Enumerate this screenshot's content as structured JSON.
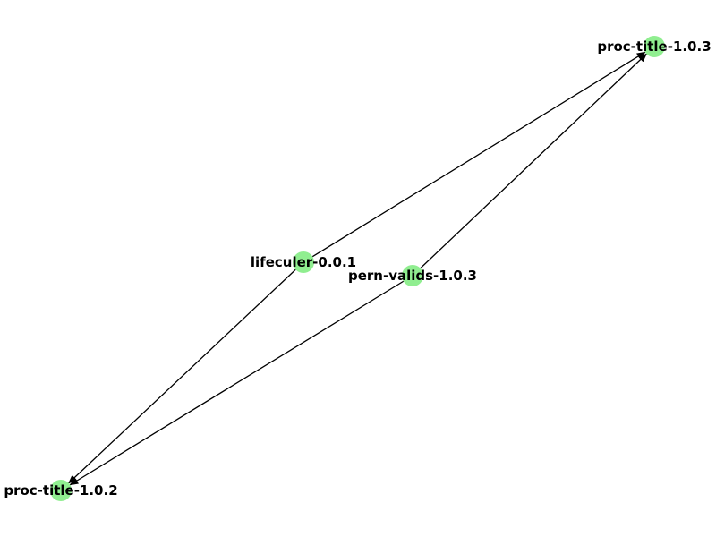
{
  "graph": {
    "node_color": "#90ee90",
    "edge_color": "#000000",
    "directed": true,
    "nodes": [
      {
        "id": "proc-title-1.0.3",
        "label": "proc-title-1.0.3"
      },
      {
        "id": "lifeculer-0.0.1",
        "label": "lifeculer-0.0.1"
      },
      {
        "id": "pern-valids-1.0.3",
        "label": "pern-valids-1.0.3"
      },
      {
        "id": "proc-title-1.0.2",
        "label": "proc-title-1.0.2"
      }
    ],
    "edges": [
      {
        "source": "lifeculer-0.0.1",
        "target": "proc-title-1.0.3"
      },
      {
        "source": "lifeculer-0.0.1",
        "target": "proc-title-1.0.2"
      },
      {
        "source": "pern-valids-1.0.3",
        "target": "proc-title-1.0.3"
      },
      {
        "source": "pern-valids-1.0.3",
        "target": "proc-title-1.0.2"
      }
    ]
  }
}
